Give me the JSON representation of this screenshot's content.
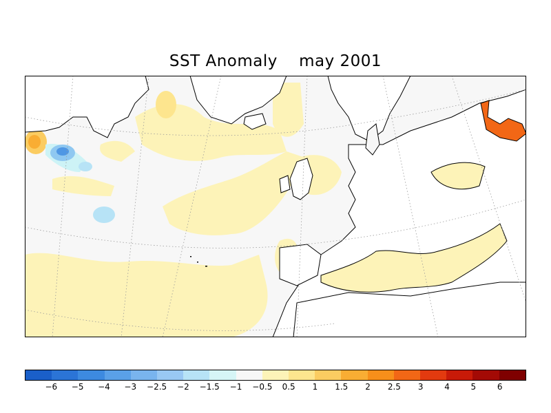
{
  "title": "SST Anomaly    may 2001",
  "colorbar": {
    "colors": [
      "#1a5fc9",
      "#2b74d6",
      "#3d8ae0",
      "#5aa0e8",
      "#79b4ee",
      "#99c8f3",
      "#b7e3f6",
      "#d6f5f6",
      "#f7f7f7",
      "#fdf3b8",
      "#fde58e",
      "#fbcc61",
      "#f9ad33",
      "#f78f1a",
      "#f26716",
      "#e33a0f",
      "#c81a08",
      "#a30a05",
      "#7f0000"
    ],
    "labels": [
      "−6",
      "−5",
      "−4",
      "−3",
      "−2.5",
      "−2",
      "−1.5",
      "−1",
      "−0.5",
      "0.5",
      "1",
      "1.5",
      "2",
      "2.5",
      "3",
      "4",
      "5",
      "6"
    ]
  },
  "legend_colors": {
    "ocean_neutral": "#f7f7f7",
    "warm_1": "#fdf3b8",
    "warm_2": "#fbcc61",
    "warm_3": "#f26716",
    "cold_1": "#cdf3f6",
    "cold_2": "#8fc8f1",
    "cold_3": "#4f97e4",
    "land": "#ffffff",
    "coast": "#000000",
    "graticule": "#9a9a9a"
  }
}
